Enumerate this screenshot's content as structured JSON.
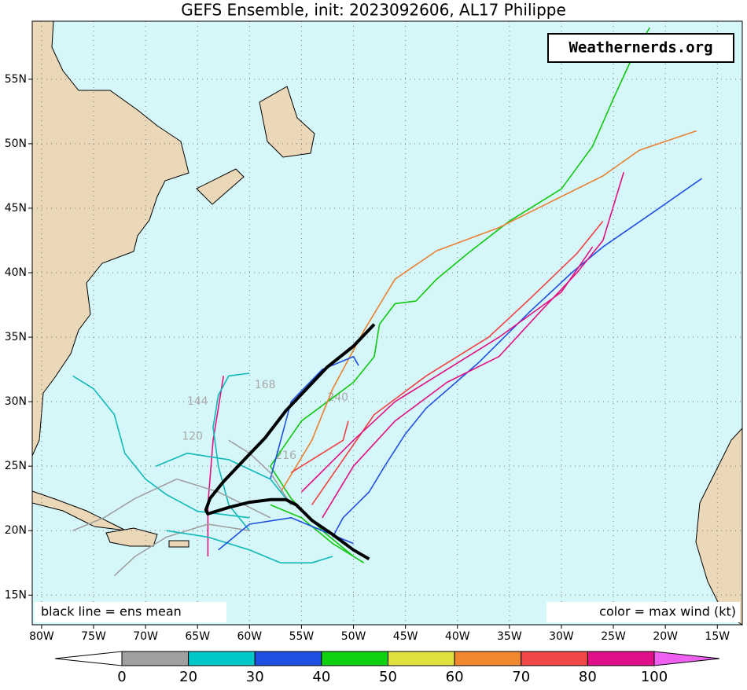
{
  "title": "GEFS Ensemble, init: 2023092606, AL17 Philippe",
  "watermark": "Weathernerds.org",
  "note_left": "black line = ens mean",
  "note_right": "color = max wind (kt)",
  "map": {
    "xlim": [
      -80.9,
      -12.6
    ],
    "ylim": [
      12.7,
      59.5
    ],
    "ocean": "#d6f7fa",
    "land": "#ead8b8",
    "xticks": [
      {
        "value": -80,
        "label": "80W"
      },
      {
        "value": -75,
        "label": "75W"
      },
      {
        "value": -70,
        "label": "70W"
      },
      {
        "value": -65,
        "label": "65W"
      },
      {
        "value": -60,
        "label": "60W"
      },
      {
        "value": -55,
        "label": "55W"
      },
      {
        "value": -50,
        "label": "50W"
      },
      {
        "value": -45,
        "label": "45W"
      },
      {
        "value": -40,
        "label": "40W"
      },
      {
        "value": -35,
        "label": "35W"
      },
      {
        "value": -30,
        "label": "30W"
      },
      {
        "value": -25,
        "label": "25W"
      },
      {
        "value": -20,
        "label": "20W"
      },
      {
        "value": -15,
        "label": "15W"
      }
    ],
    "yticks": [
      {
        "value": 15,
        "label": "15N"
      },
      {
        "value": 20,
        "label": "20N"
      },
      {
        "value": 25,
        "label": "25N"
      },
      {
        "value": 30,
        "label": "30N"
      },
      {
        "value": 35,
        "label": "35N"
      },
      {
        "value": 40,
        "label": "40N"
      },
      {
        "value": 45,
        "label": "45N"
      },
      {
        "value": 50,
        "label": "50N"
      },
      {
        "value": 55,
        "label": "55N"
      }
    ],
    "grid": true,
    "tracks": [
      {
        "color": "#10c810",
        "lon": [
          -50,
          -53,
          -56,
          -58,
          -55,
          -50,
          -48,
          -47.5,
          -46,
          -44,
          -42,
          -39,
          -35,
          -30,
          -27,
          -25,
          -23,
          -21.5
        ],
        "lat": [
          18,
          20,
          22.5,
          25,
          28.5,
          31.5,
          33.5,
          36,
          37.6,
          37.8,
          39.5,
          41.5,
          44,
          46.5,
          49.8,
          53.5,
          57,
          59
        ]
      },
      {
        "color": "#e88030",
        "lon": [
          -57,
          -54,
          -52,
          -49,
          -46,
          -42,
          -36,
          -31,
          -26,
          -22.5,
          -17
        ],
        "lat": [
          23,
          27,
          31,
          35.5,
          39.5,
          41.7,
          43.5,
          45.5,
          47.5,
          49.5,
          51
        ]
      },
      {
        "color": "#2050e0",
        "lon": [
          -52,
          -51,
          -48.5,
          -47,
          -45,
          -43,
          -38,
          -33,
          -29,
          -26,
          -21.5,
          -16.5
        ],
        "lat": [
          19.5,
          21,
          23,
          25,
          27.5,
          29.5,
          33,
          37,
          40,
          42,
          44.5,
          47.3
        ]
      },
      {
        "color": "#e01080",
        "lon": [
          -53,
          -50,
          -46,
          -41,
          -36,
          -32,
          -28.5,
          -26,
          -24
        ],
        "lat": [
          21,
          25,
          28.5,
          31.5,
          33.5,
          37,
          40,
          42.5,
          47.8
        ]
      },
      {
        "color": "#f04040",
        "lon": [
          -54,
          -48,
          -43,
          -37,
          -33,
          -28.5,
          -26
        ],
        "lat": [
          22,
          29,
          32,
          35,
          38,
          41.5,
          44
        ]
      },
      {
        "color": "#e01080",
        "lon": [
          -55,
          -50,
          -46,
          -42,
          -36,
          -30,
          -27
        ],
        "lat": [
          23,
          27,
          30,
          32,
          35,
          38.5,
          42
        ]
      },
      {
        "color": "#f04040",
        "lon": [
          -56,
          -53,
          -51,
          -50.5
        ],
        "lat": [
          24.5,
          26,
          27,
          28.5
        ]
      },
      {
        "color": "#2050e0",
        "lon": [
          -58,
          -57,
          -56,
          -53,
          -50,
          -49.5
        ],
        "lat": [
          24,
          27,
          30,
          32.5,
          33.5,
          32.8
        ]
      },
      {
        "color": "#e01080",
        "lon": [
          -64,
          -64,
          -63.5,
          -62.5
        ],
        "lat": [
          18,
          22,
          27,
          32
        ]
      },
      {
        "color": "#10b8b8",
        "lon": [
          -77,
          -75,
          -73,
          -72,
          -70,
          -68,
          -65,
          -60
        ],
        "lat": [
          32,
          31,
          29,
          26,
          24,
          22.8,
          21.5,
          21
        ]
      },
      {
        "color": "#10b8b8",
        "lon": [
          -60,
          -62,
          -63,
          -63.5,
          -63,
          -62,
          -60
        ],
        "lat": [
          20,
          22,
          25,
          28,
          30.5,
          32,
          32.2
        ]
      },
      {
        "color": "#a0a0a0",
        "lon": [
          -60,
          -64,
          -68,
          -71,
          -73
        ],
        "lat": [
          20,
          20.5,
          19.5,
          18,
          16.5
        ]
      },
      {
        "color": "#a0a0a0",
        "lon": [
          -58,
          -63,
          -67,
          -71,
          -74,
          -77
        ],
        "lat": [
          21,
          23,
          24,
          22.5,
          21,
          20
        ]
      },
      {
        "color": "#10b8b8",
        "lon": [
          -52,
          -54,
          -57,
          -60,
          -64,
          -68
        ],
        "lat": [
          18,
          17.5,
          17.5,
          18.5,
          19.5,
          20
        ]
      },
      {
        "color": "#10c810",
        "lon": [
          -49,
          -52,
          -55,
          -58
        ],
        "lat": [
          17.5,
          19,
          21,
          22
        ]
      },
      {
        "color": "#10b8b8",
        "lon": [
          -56,
          -58,
          -62,
          -66,
          -69
        ],
        "lat": [
          22,
          24,
          25.5,
          26,
          25
        ]
      },
      {
        "color": "#a0a0a0",
        "lon": [
          -56,
          -58,
          -60,
          -62
        ],
        "lat": [
          22,
          24.5,
          26,
          27
        ]
      },
      {
        "color": "#2050e0",
        "lon": [
          -50,
          -53,
          -56,
          -60,
          -63
        ],
        "lat": [
          19,
          20,
          21,
          20.5,
          18.5
        ]
      }
    ],
    "mean_track": {
      "color": "#000000",
      "lon": [
        -48.5,
        -50,
        -52,
        -54,
        -55.5,
        -56.5,
        -58,
        -60,
        -62,
        -64,
        -64.2,
        -63.8,
        -62.5,
        -60.5,
        -58.5,
        -56.5,
        -54.5,
        -52.5,
        -50,
        -48
      ],
      "lat": [
        17.8,
        18.5,
        19.7,
        20.8,
        22,
        22.4,
        22.4,
        22.2,
        21.8,
        21.3,
        21.6,
        22.5,
        23.8,
        25.5,
        27.2,
        29.3,
        31,
        32.7,
        34.3,
        36
      ]
    },
    "hour_labels": [
      {
        "text": "168",
        "lon": -58.5,
        "lat": 31.3
      },
      {
        "text": "144",
        "lon": -65,
        "lat": 30
      },
      {
        "text": "120",
        "lon": -65.5,
        "lat": 27.3
      },
      {
        "text": "240",
        "lon": -51.5,
        "lat": 30.3
      },
      {
        "text": "216",
        "lon": -56.5,
        "lat": 25.8
      }
    ]
  },
  "colorbar": {
    "levels": [
      0,
      20,
      30,
      40,
      50,
      60,
      70,
      80,
      100
    ],
    "colors": [
      "#ffffff",
      "#a0a0a0",
      "#00c8c8",
      "#2050e0",
      "#10d010",
      "#e0e040",
      "#f08830",
      "#f04848",
      "#e01088",
      "#f060f0"
    ]
  }
}
